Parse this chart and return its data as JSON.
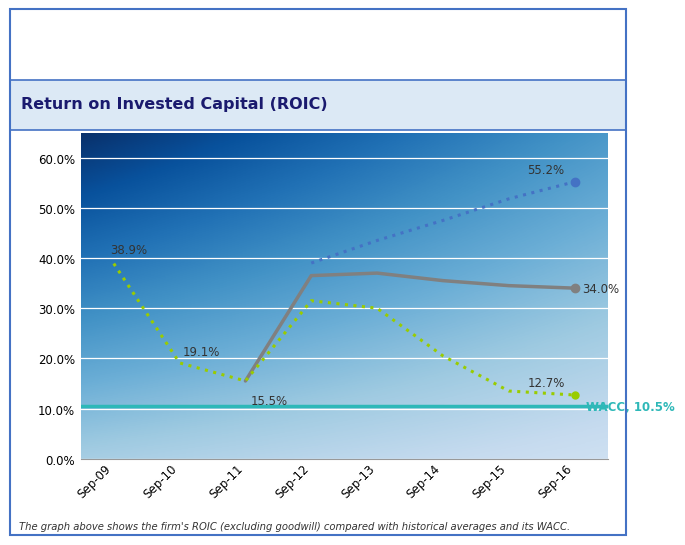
{
  "title": "Return on Invested Capital (ROIC)",
  "footnote": "The graph above shows the firm's ROIC (excluding goodwill) compared with historical averages and its WACC.",
  "x_labels": [
    "Sep-09",
    "Sep-10",
    "Sep-11",
    "Sep-12",
    "Sep-13",
    "Sep-14",
    "Sep-15",
    "Sep-16"
  ],
  "roic_values": [
    null,
    null,
    15.5,
    36.5,
    37.0,
    35.5,
    34.5,
    34.0
  ],
  "green_dotted": [
    38.9,
    19.1,
    15.5,
    31.5,
    30.0,
    20.5,
    13.5,
    12.7
  ],
  "blue_dotted": [
    null,
    null,
    null,
    39.0,
    43.5,
    47.5,
    51.8,
    55.2
  ],
  "wacc": 10.5,
  "roic_color": "#808080",
  "green_color": "#99cc00",
  "blue_color": "#4472c4",
  "wacc_color": "#2eb8b8",
  "ylim": [
    0,
    65
  ],
  "yticks": [
    0,
    10,
    20,
    30,
    40,
    50,
    60
  ],
  "bg_light": "#dce9f5",
  "bg_dark": "#b8cfe8",
  "outer_bg": "#ffffff",
  "title_bg": "#dce9f5",
  "border_color": "#4472c4",
  "label_38_9": "38.9%",
  "label_19_1": "19.1%",
  "label_15_5": "15.5%",
  "label_55_2": "55.2%",
  "label_34_0": "34.0%",
  "label_12_7": "12.7%",
  "label_wacc": "WACC, 10.5%"
}
